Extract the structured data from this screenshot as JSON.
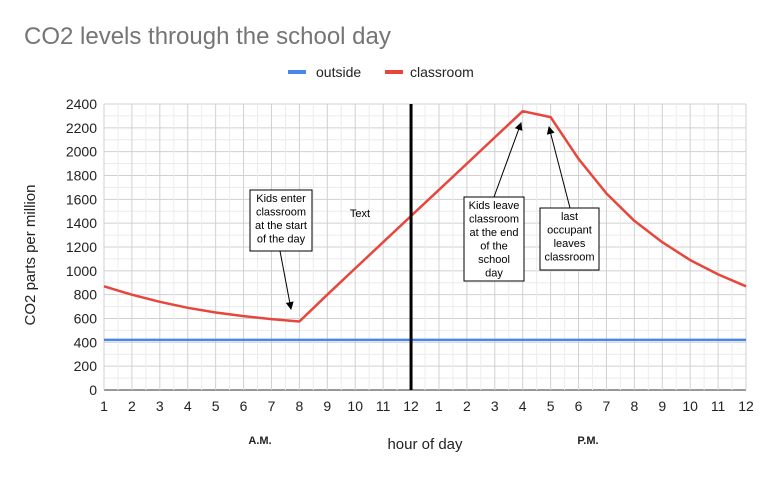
{
  "chart_data": {
    "type": "line",
    "title": "CO2 levels through the school day",
    "xlabel": "hour of day",
    "ylabel": "CO2 parts per million",
    "categories": [
      "1",
      "2",
      "3",
      "4",
      "5",
      "6",
      "7",
      "8",
      "9",
      "10",
      "11",
      "12",
      "1",
      "2",
      "3",
      "4",
      "5",
      "6",
      "7",
      "8",
      "9",
      "10",
      "11",
      "12"
    ],
    "ylim": [
      0,
      2400
    ],
    "yticks": [
      0,
      200,
      400,
      600,
      800,
      1000,
      1200,
      1400,
      1600,
      1800,
      2000,
      2200,
      2400
    ],
    "grid": true,
    "legend_position": "top",
    "series": [
      {
        "name": "outside",
        "color": "#4a86e8",
        "values": [
          420,
          420,
          420,
          420,
          420,
          420,
          420,
          420,
          420,
          420,
          420,
          420,
          420,
          420,
          420,
          420,
          420,
          420,
          420,
          420,
          420,
          420,
          420,
          420
        ]
      },
      {
        "name": "classroom",
        "color": "#e8463c",
        "values": [
          870,
          800,
          740,
          690,
          650,
          620,
          595,
          575,
          800,
          1020,
          1240,
          1460,
          1680,
          1900,
          2120,
          2340,
          2290,
          1940,
          1650,
          1420,
          1240,
          1090,
          970,
          870
        ]
      }
    ],
    "period_labels": [
      "A.M.",
      "P.M."
    ],
    "annotations": [
      {
        "text": [
          "Kids enter",
          "classroom",
          "at the start",
          "of the day"
        ],
        "x": "8 A.M.",
        "y": 575
      },
      {
        "text": [
          "Text"
        ]
      },
      {
        "text": [
          "Kids leave",
          "classroom",
          "at the end",
          "of the",
          "school",
          "day"
        ],
        "x": "4 P.M.",
        "y": 2340
      },
      {
        "text": [
          "last",
          "occupant",
          "leaves",
          "classroom"
        ],
        "x": "5 P.M.",
        "y": 2290
      }
    ]
  }
}
